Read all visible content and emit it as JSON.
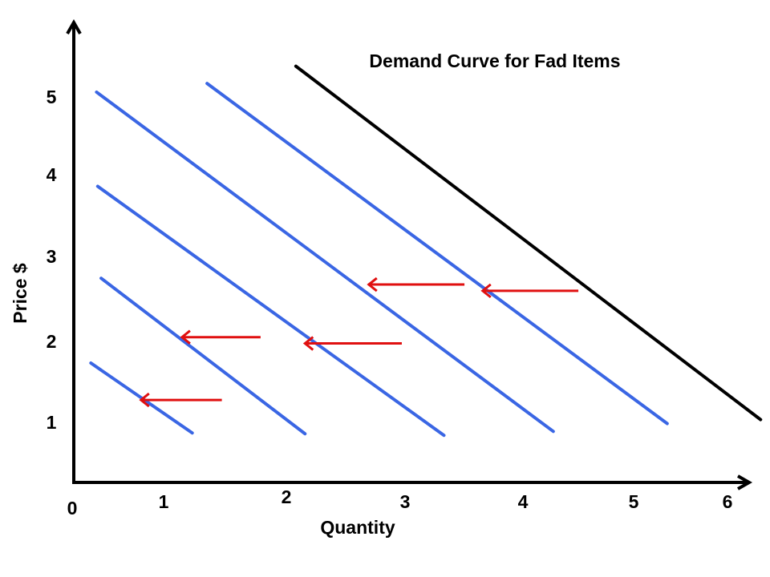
{
  "chart_data": {
    "type": "line",
    "title": "Demand Curve for Fad Items",
    "xlabel": "Quantity",
    "ylabel": "Price $",
    "x_origin_label": "0",
    "xticks": [
      "1",
      "2",
      "3",
      "4",
      "5",
      "6"
    ],
    "yticks": [
      "1",
      "2",
      "3",
      "4",
      "5"
    ],
    "xlim": [
      0,
      6
    ],
    "ylim": [
      0,
      5.5
    ],
    "grid": false,
    "colors": {
      "original": "#000000",
      "shifted": "#3a66e4",
      "arrow": "#e01010",
      "axis": "#000000"
    },
    "series": [
      {
        "points": [
          [
            1.95,
            5.3
          ],
          [
            6.03,
            0.8
          ]
        ],
        "color": "#000000"
      },
      {
        "points": [
          [
            1.17,
            5.08
          ],
          [
            5.21,
            0.75
          ]
        ],
        "color": "#3a66e4"
      },
      {
        "points": [
          [
            0.2,
            4.97
          ],
          [
            4.21,
            0.65
          ]
        ],
        "color": "#3a66e4"
      },
      {
        "points": [
          [
            0.21,
            3.77
          ],
          [
            3.25,
            0.6
          ]
        ],
        "color": "#3a66e4"
      },
      {
        "points": [
          [
            0.24,
            2.6
          ],
          [
            2.03,
            0.62
          ]
        ],
        "color": "#3a66e4"
      },
      {
        "points": [
          [
            0.15,
            1.52
          ],
          [
            1.04,
            0.63
          ]
        ],
        "color": "#3a66e4"
      }
    ],
    "shift_arrows": [
      {
        "from": [
          4.43,
          2.44
        ],
        "to": [
          3.59,
          2.44
        ]
      },
      {
        "from": [
          3.43,
          2.52
        ],
        "to": [
          2.59,
          2.52
        ]
      },
      {
        "from": [
          2.88,
          1.77
        ],
        "to": [
          2.03,
          1.77
        ]
      },
      {
        "from": [
          1.64,
          1.85
        ],
        "to": [
          0.95,
          1.85
        ]
      },
      {
        "from": [
          1.3,
          1.05
        ],
        "to": [
          0.59,
          1.05
        ]
      }
    ]
  }
}
